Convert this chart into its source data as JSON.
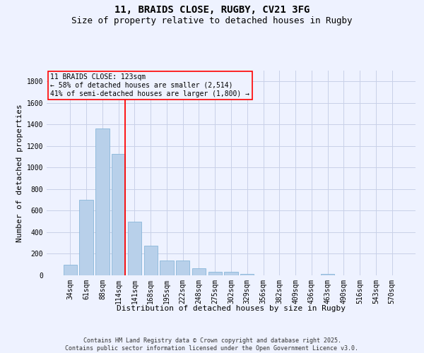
{
  "title_line1": "11, BRAIDS CLOSE, RUGBY, CV21 3FG",
  "title_line2": "Size of property relative to detached houses in Rugby",
  "xlabel": "Distribution of detached houses by size in Rugby",
  "ylabel": "Number of detached properties",
  "categories": [
    "34sqm",
    "61sqm",
    "88sqm",
    "114sqm",
    "141sqm",
    "168sqm",
    "195sqm",
    "222sqm",
    "248sqm",
    "275sqm",
    "302sqm",
    "329sqm",
    "356sqm",
    "382sqm",
    "409sqm",
    "436sqm",
    "463sqm",
    "490sqm",
    "516sqm",
    "543sqm",
    "570sqm"
  ],
  "values": [
    97,
    700,
    1365,
    1130,
    495,
    275,
    140,
    140,
    68,
    35,
    32,
    12,
    0,
    0,
    0,
    0,
    14,
    0,
    0,
    0,
    0
  ],
  "bar_color": "#b8d0ea",
  "bar_edge_color": "#7aafd4",
  "vline_color": "red",
  "vline_pos": 3.42,
  "annotation_text": "11 BRAIDS CLOSE: 123sqm\n← 58% of detached houses are smaller (2,514)\n41% of semi-detached houses are larger (1,800) →",
  "annotation_box_color": "red",
  "background_color": "#eef2ff",
  "grid_color": "#c8d0e8",
  "ylim": [
    0,
    1900
  ],
  "yticks": [
    0,
    200,
    400,
    600,
    800,
    1000,
    1200,
    1400,
    1600,
    1800
  ],
  "footer_text": "Contains HM Land Registry data © Crown copyright and database right 2025.\nContains public sector information licensed under the Open Government Licence v3.0.",
  "title_fontsize": 10,
  "subtitle_fontsize": 9,
  "axis_label_fontsize": 8,
  "tick_fontsize": 7,
  "annotation_fontsize": 7,
  "footer_fontsize": 6
}
